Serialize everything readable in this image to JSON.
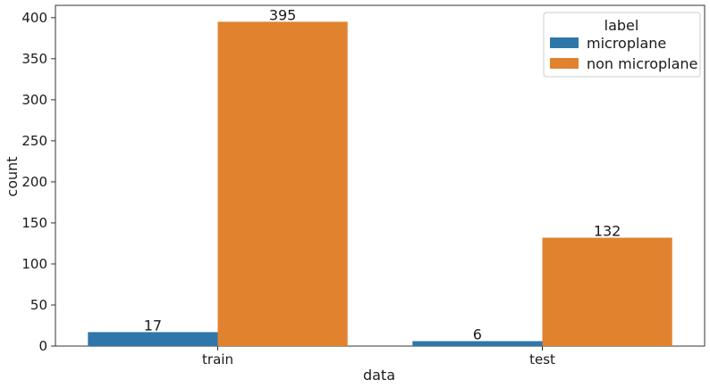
{
  "chart_data": {
    "type": "bar",
    "categories": [
      "train",
      "test"
    ],
    "series": [
      {
        "name": "microplane",
        "values": [
          17,
          6
        ],
        "color": "#2f76aa"
      },
      {
        "name": "non microplane",
        "values": [
          395,
          132
        ],
        "color": "#e0822e"
      }
    ],
    "xlabel": "data",
    "ylabel": "count",
    "ylim": [
      0,
      415
    ],
    "yticks": [
      0,
      50,
      100,
      150,
      200,
      250,
      300,
      350,
      400
    ],
    "legend": {
      "title": "label",
      "placement": "top-right"
    },
    "grid": false
  }
}
